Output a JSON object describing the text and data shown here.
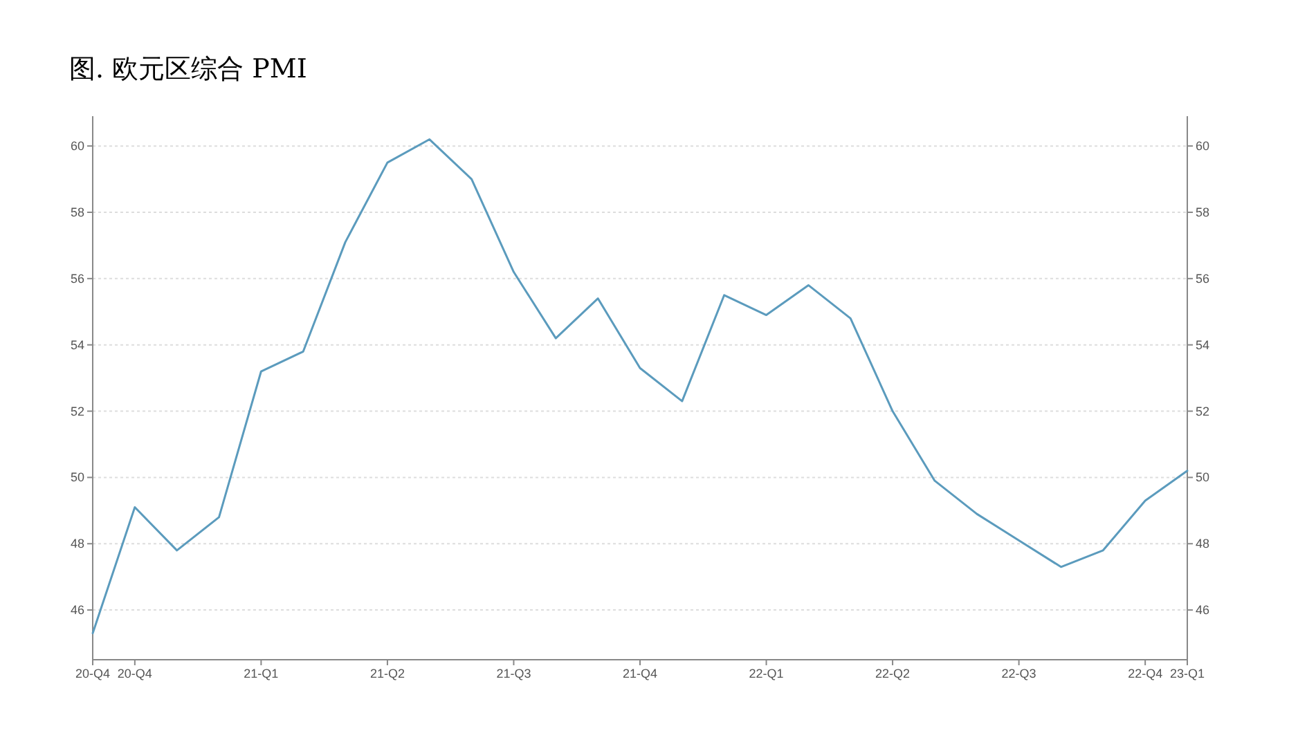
{
  "chart_data": {
    "type": "line",
    "title": "图. 欧元区综合 PMI",
    "categories": [
      "20-Q4",
      "20-Q4",
      null,
      null,
      "21-Q1",
      null,
      null,
      "21-Q2",
      null,
      null,
      "21-Q3",
      null,
      null,
      "21-Q4",
      null,
      null,
      "22-Q1",
      null,
      null,
      "22-Q2",
      null,
      null,
      "22-Q3",
      null,
      null,
      "22-Q4",
      "23-Q1"
    ],
    "series": [
      {
        "color": "#5b9bbd",
        "values": [
          45.3,
          49.1,
          47.8,
          48.8,
          53.2,
          53.8,
          57.1,
          59.5,
          60.2,
          59.0,
          56.2,
          54.2,
          55.4,
          53.3,
          52.3,
          55.5,
          54.9,
          55.8,
          54.8,
          52.0,
          49.9,
          48.9,
          48.1,
          47.3,
          47.8,
          49.3,
          50.2
        ]
      }
    ],
    "ylim": [
      44.5,
      60.9
    ],
    "yticks": [
      46,
      48,
      50,
      52,
      54,
      56,
      58,
      60
    ],
    "y2lim": [
      44.5,
      60.9
    ],
    "y2ticks": [
      46,
      48,
      50,
      52,
      54,
      56,
      58,
      60
    ],
    "grid": "y",
    "marker": "none",
    "line_style": "solid"
  }
}
